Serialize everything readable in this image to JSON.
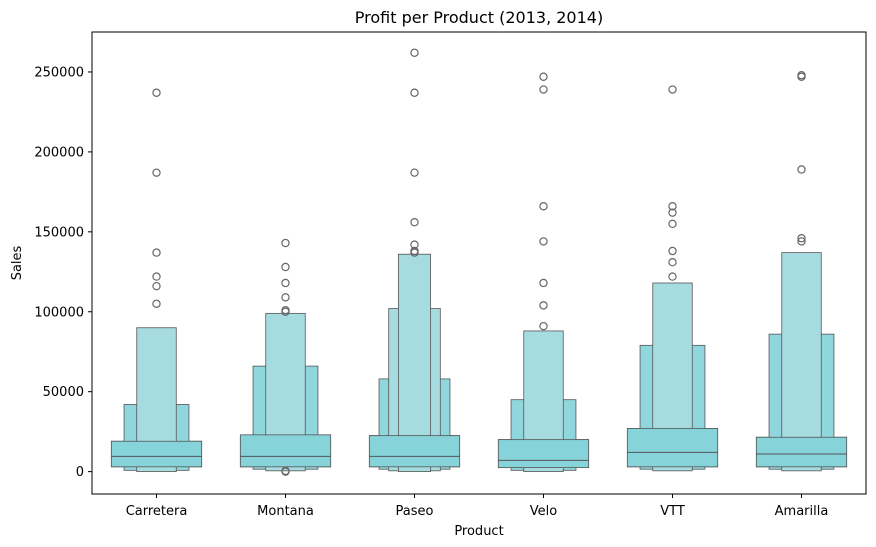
{
  "chart_data": {
    "type": "boxen",
    "title": "Profit per Product (2013, 2014)",
    "xlabel": "Product",
    "ylabel": "Sales",
    "ylim": [
      -14000,
      275000
    ],
    "yticks": [
      0,
      50000,
      100000,
      150000,
      200000,
      250000
    ],
    "ytick_labels": [
      "0",
      "50000",
      "100000",
      "150000",
      "200000",
      "250000"
    ],
    "grid": false,
    "legend": "none",
    "colors": {
      "fill_outer": "#a6dce0",
      "fill_mid": "#8fd6dd",
      "fill_inner": "#86d3da",
      "edge": "#555555",
      "flier": "#666666"
    },
    "categories": [
      "Carretera",
      "Montana",
      "Paseo",
      "Velo",
      "VTT",
      "Amarilla"
    ],
    "boxes": [
      {
        "name": "Carretera",
        "median": 9500,
        "levels": [
          [
            3000,
            19000
          ],
          [
            800,
            42000
          ],
          [
            0,
            90000
          ]
        ],
        "outliers": [
          237000,
          187000,
          137000,
          122000,
          116000,
          105000
        ]
      },
      {
        "name": "Montana",
        "median": 9500,
        "levels": [
          [
            3000,
            23000
          ],
          [
            1500,
            66000
          ],
          [
            500,
            99000
          ]
        ],
        "outliers": [
          143000,
          128000,
          118000,
          109000,
          101000,
          100000,
          500,
          0
        ]
      },
      {
        "name": "Paseo",
        "median": 9500,
        "levels": [
          [
            3000,
            22500
          ],
          [
            1500,
            58000
          ],
          [
            500,
            102000
          ],
          [
            0,
            136000
          ]
        ],
        "outliers": [
          262000,
          237000,
          187000,
          156000,
          142000,
          138000,
          137000
        ]
      },
      {
        "name": "Velo",
        "median": 7000,
        "levels": [
          [
            2500,
            20000
          ],
          [
            800,
            45000
          ],
          [
            0,
            88000
          ]
        ],
        "outliers": [
          247000,
          239000,
          166000,
          144000,
          118000,
          104000,
          91000
        ]
      },
      {
        "name": "VTT",
        "median": 12000,
        "levels": [
          [
            3000,
            27000
          ],
          [
            1500,
            79000
          ],
          [
            500,
            118000
          ]
        ],
        "outliers": [
          239000,
          166000,
          162000,
          155000,
          138000,
          131000,
          122000
        ]
      },
      {
        "name": "Amarilla",
        "median": 11000,
        "levels": [
          [
            3000,
            21500
          ],
          [
            1500,
            86000
          ],
          [
            500,
            137000
          ]
        ],
        "outliers": [
          248000,
          247000,
          189000,
          146000,
          144000
        ]
      }
    ]
  }
}
